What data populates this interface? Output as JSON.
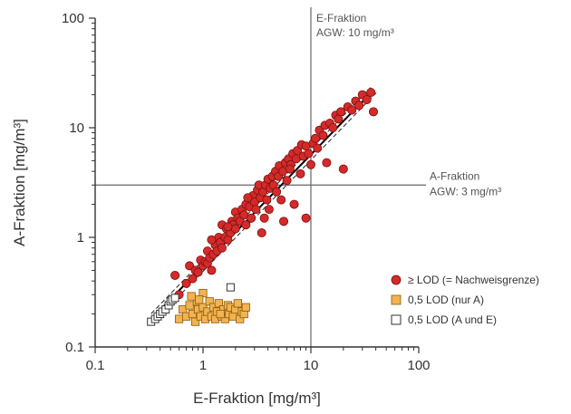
{
  "chart_data": {
    "type": "scatter",
    "xscale": "log",
    "yscale": "log",
    "xlim": [
      0.1,
      100
    ],
    "ylim": [
      0.1,
      100
    ],
    "xlabel": "E-Fraktion [mg/m³]",
    "ylabel": "A-Fraktion [mg/m³]",
    "xticks": [
      "0.1",
      "1",
      "10",
      "100"
    ],
    "yticks": [
      "0.1",
      "1",
      "10",
      "100"
    ],
    "reference_lines": [
      {
        "orientation": "vertical",
        "value": 10,
        "label_line1": "E-Fraktion",
        "label_line2": "AGW: 10 mg/m³"
      },
      {
        "orientation": "horizontal",
        "value": 3,
        "label_line1": "A-Fraktion",
        "label_line2": "AGW: 3 mg/m³"
      }
    ],
    "regression_line": {
      "x": [
        0.35,
        38
      ],
      "y": [
        0.19,
        22
      ]
    },
    "legend_position": "right",
    "series": [
      {
        "name": "≥ LOD (= Nachweisgrenze)",
        "marker": "circle",
        "color": "#d42a2a",
        "points": [
          [
            0.55,
            0.45
          ],
          [
            0.6,
            0.3
          ],
          [
            0.7,
            0.38
          ],
          [
            0.75,
            0.55
          ],
          [
            0.8,
            0.42
          ],
          [
            0.85,
            0.5
          ],
          [
            0.9,
            0.48
          ],
          [
            0.95,
            0.62
          ],
          [
            1.0,
            0.55
          ],
          [
            1.05,
            0.6
          ],
          [
            1.1,
            0.58
          ],
          [
            1.1,
            0.75
          ],
          [
            1.15,
            0.65
          ],
          [
            1.2,
            0.5
          ],
          [
            1.25,
            0.7
          ],
          [
            1.3,
            0.85
          ],
          [
            1.35,
            0.75
          ],
          [
            1.4,
            1.0
          ],
          [
            1.45,
            0.9
          ],
          [
            1.5,
            0.8
          ],
          [
            1.5,
            1.3
          ],
          [
            1.6,
            1.0
          ],
          [
            1.65,
            1.2
          ],
          [
            1.7,
            0.95
          ],
          [
            1.8,
            1.1
          ],
          [
            1.85,
            1.4
          ],
          [
            1.9,
            1.3
          ],
          [
            2.0,
            1.2
          ],
          [
            2.0,
            1.7
          ],
          [
            2.1,
            1.5
          ],
          [
            2.2,
            1.4
          ],
          [
            2.3,
            1.8
          ],
          [
            2.4,
            1.6
          ],
          [
            2.5,
            1.3
          ],
          [
            2.5,
            2.0
          ],
          [
            2.7,
            1.9
          ],
          [
            2.8,
            1.5
          ],
          [
            2.9,
            2.4
          ],
          [
            3.0,
            2.1
          ],
          [
            3.1,
            1.8
          ],
          [
            3.2,
            2.7
          ],
          [
            3.3,
            3.0
          ],
          [
            3.4,
            2.3
          ],
          [
            3.5,
            1.1
          ],
          [
            3.6,
            2.6
          ],
          [
            3.8,
            3.0
          ],
          [
            3.9,
            2.2
          ],
          [
            4.0,
            3.4
          ],
          [
            4.1,
            1.8
          ],
          [
            4.2,
            2.8
          ],
          [
            4.4,
            3.6
          ],
          [
            4.5,
            3.0
          ],
          [
            4.7,
            4.0
          ],
          [
            4.8,
            2.6
          ],
          [
            5.0,
            3.6
          ],
          [
            5.1,
            4.5
          ],
          [
            5.3,
            2.2
          ],
          [
            5.5,
            4.0
          ],
          [
            5.6,
            1.4
          ],
          [
            5.8,
            4.8
          ],
          [
            6.0,
            3.3
          ],
          [
            6.2,
            5.2
          ],
          [
            6.5,
            4.6
          ],
          [
            6.8,
            5.8
          ],
          [
            7.0,
            2.0
          ],
          [
            7.3,
            5.2
          ],
          [
            7.5,
            6.2
          ],
          [
            8.0,
            3.8
          ],
          [
            8.2,
            7.0
          ],
          [
            8.5,
            5.5
          ],
          [
            9.0,
            6.8
          ],
          [
            9.0,
            1.5
          ],
          [
            9.5,
            5.8
          ],
          [
            10.0,
            4.6
          ],
          [
            10.5,
            7.2
          ],
          [
            11.0,
            8.0
          ],
          [
            11.5,
            6.5
          ],
          [
            12.0,
            9.5
          ],
          [
            13.0,
            8.5
          ],
          [
            13.5,
            10.5
          ],
          [
            14.0,
            4.8
          ],
          [
            15.0,
            11.0
          ],
          [
            16.0,
            10.0
          ],
          [
            17.0,
            13.0
          ],
          [
            18.0,
            12.0
          ],
          [
            19.0,
            14.0
          ],
          [
            20.0,
            4.2
          ],
          [
            22.0,
            15.5
          ],
          [
            24.0,
            14.5
          ],
          [
            26.0,
            17.5
          ],
          [
            28.0,
            16.0
          ],
          [
            30.0,
            20.0
          ],
          [
            33.0,
            18.0
          ],
          [
            36.0,
            21.0
          ],
          [
            38.0,
            14.0
          ],
          [
            1.2,
            0.95
          ],
          [
            1.7,
            1.25
          ],
          [
            2.6,
            2.3
          ],
          [
            3.7,
            1.5
          ],
          [
            6.4,
            4.2
          ]
        ]
      },
      {
        "name": "0,5 LOD (nur A)",
        "marker": "square",
        "color": "#f2b350",
        "points": [
          [
            0.6,
            0.18
          ],
          [
            0.65,
            0.22
          ],
          [
            0.7,
            0.19
          ],
          [
            0.75,
            0.24
          ],
          [
            0.8,
            0.2
          ],
          [
            0.85,
            0.17
          ],
          [
            0.88,
            0.26
          ],
          [
            0.9,
            0.22
          ],
          [
            0.95,
            0.19
          ],
          [
            1.0,
            0.23
          ],
          [
            1.0,
            0.31
          ],
          [
            1.05,
            0.18
          ],
          [
            1.1,
            0.21
          ],
          [
            1.15,
            0.26
          ],
          [
            1.2,
            0.19
          ],
          [
            1.25,
            0.23
          ],
          [
            1.3,
            0.18
          ],
          [
            1.35,
            0.21
          ],
          [
            1.4,
            0.25
          ],
          [
            1.5,
            0.19
          ],
          [
            1.55,
            0.22
          ],
          [
            1.6,
            0.18
          ],
          [
            1.7,
            0.24
          ],
          [
            1.75,
            0.2
          ],
          [
            1.8,
            0.23
          ],
          [
            1.9,
            0.19
          ],
          [
            2.0,
            0.22
          ],
          [
            2.1,
            0.25
          ],
          [
            2.2,
            0.18
          ],
          [
            2.3,
            0.21
          ],
          [
            2.4,
            0.2
          ],
          [
            2.5,
            0.23
          ],
          [
            0.78,
            0.29
          ],
          [
            0.92,
            0.27
          ],
          [
            1.45,
            0.2
          ]
        ]
      },
      {
        "name": "0,5 LOD (A und E)",
        "marker": "square-open",
        "color": "#ffffff",
        "points": [
          [
            0.33,
            0.17
          ],
          [
            0.36,
            0.18
          ],
          [
            0.38,
            0.19
          ],
          [
            0.4,
            0.2
          ],
          [
            0.42,
            0.21
          ],
          [
            0.45,
            0.22
          ],
          [
            0.48,
            0.24
          ],
          [
            0.5,
            0.26
          ],
          [
            0.52,
            0.27
          ],
          [
            0.55,
            0.28
          ],
          [
            1.8,
            0.35
          ]
        ]
      }
    ]
  }
}
